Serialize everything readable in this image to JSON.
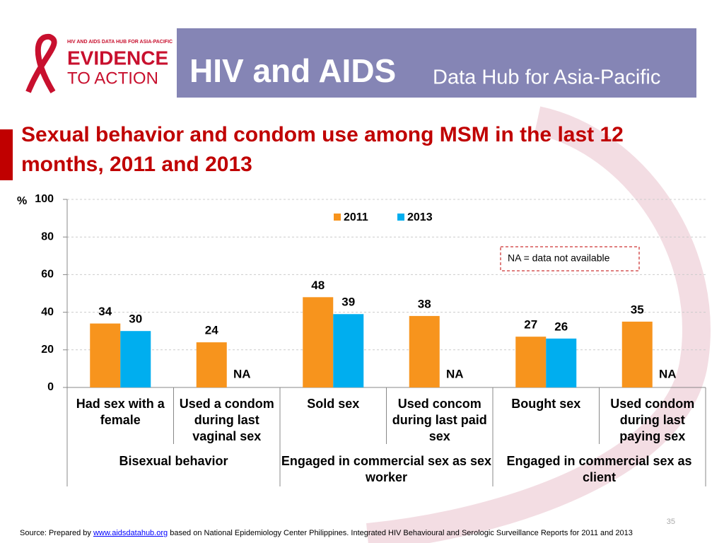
{
  "header": {
    "logo_small": "HIV AND AIDS DATA HUB FOR ASIA-PACIFIC",
    "logo_line1": "EVIDENCE",
    "logo_line2": "TO ACTION",
    "title_main": "HIV and AIDS",
    "title_sub": "Data Hub for Asia-Pacific"
  },
  "chart_data": {
    "type": "bar",
    "title": "Sexual behavior and condom use among MSM in the last 12 months, 2011 and 2013",
    "y_label": "%",
    "categories": [
      "Had sex with a female",
      "Used a condom during last vaginal sex",
      "Sold sex",
      "Used concom during last paid sex",
      "Bought sex",
      "Used condom during last paying sex"
    ],
    "groups": [
      {
        "name": "Bisexual behavior",
        "span": [
          0,
          1
        ]
      },
      {
        "name": "Engaged in commercial sex as sex worker",
        "span": [
          2,
          3
        ]
      },
      {
        "name": "Engaged in commercial sex as client",
        "span": [
          4,
          5
        ]
      }
    ],
    "series": [
      {
        "name": "2011",
        "color": "#f7941d",
        "values": [
          34,
          24,
          48,
          38,
          27,
          35
        ]
      },
      {
        "name": "2013",
        "color": "#00aeef",
        "values": [
          30,
          null,
          39,
          null,
          26,
          null
        ],
        "value_labels": [
          "30",
          "NA",
          "39",
          "NA",
          "26",
          "NA"
        ]
      }
    ],
    "ylim": [
      0,
      100
    ],
    "yticks": [
      0,
      20,
      40,
      60,
      80,
      100
    ],
    "grid": true,
    "legend": "top",
    "annotation": "NA = data not available"
  },
  "footer": {
    "source_prefix": "Source: Prepared by",
    "source_link": "www.aidsdatahub.org",
    "source_suffix": "based on National Epidemiology Center Philippines. Integrated HIV Behavioural and Serologic Surveillance Reports for 2011 and 2013",
    "page_number": "35"
  }
}
